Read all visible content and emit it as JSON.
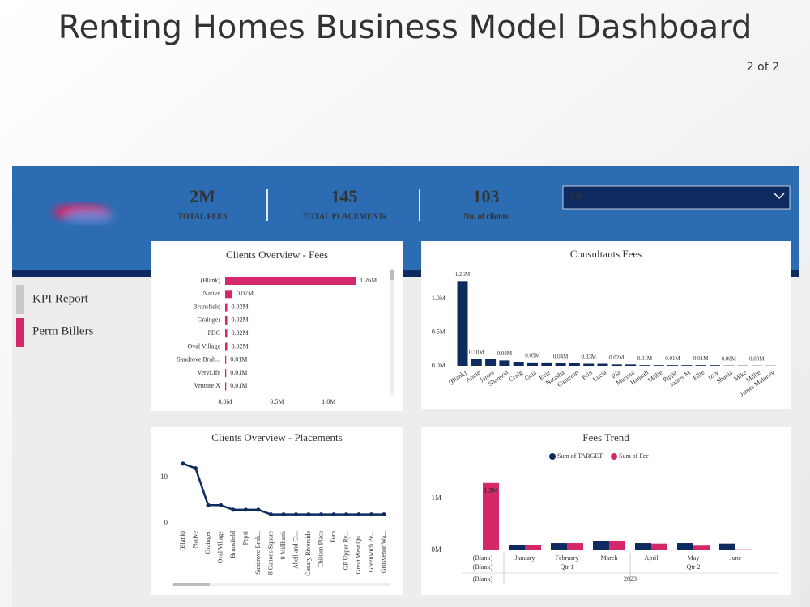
{
  "header": {
    "title": "Renting Homes Business Model Dashboard",
    "page": "2 of 2"
  },
  "kpis": [
    {
      "value": "2M",
      "label": "TOTAL FEES"
    },
    {
      "value": 145,
      "label": "TOTAL PLACEMENTs"
    },
    {
      "value": 103,
      "label": "No. of clients"
    }
  ],
  "filter": "All",
  "nav": [
    "KPI Report",
    "Perm Billers"
  ],
  "chart_data": [
    {
      "type": "hbar",
      "title": "Clients Overview - Fees",
      "categories": [
        "(Blank)",
        "Native",
        "Brunsfield",
        "Grainger",
        "PDC",
        "Oval Village",
        "Sandrove Brah...",
        "VervLife",
        "Venture X"
      ],
      "values": [
        1.26,
        0.07,
        0.02,
        0.02,
        0.02,
        0.02,
        0.01,
        0.01,
        0.01
      ],
      "value_labels": [
        "1.26M",
        "0.07M",
        "0.02M",
        "0.02M",
        "0.02M",
        "0.02M",
        "0.01M",
        "0.01M",
        "0.01M"
      ],
      "color": "#d4286a",
      "xlim": [
        0,
        1.4
      ],
      "xticks": [
        {
          "value": 0,
          "label": "0.0M"
        },
        {
          "value": 0.5,
          "label": "0.5M"
        },
        {
          "value": 1,
          "label": "1.0M"
        }
      ]
    },
    {
      "type": "bar",
      "title": "Consultants Fees",
      "categories": [
        "(Blank)",
        "Annie",
        "James",
        "Shannon",
        "Craig",
        "Gaia",
        "Evie",
        "Natasha",
        "Cameron",
        "Erin",
        "Lucia",
        "Ria",
        "Marissa",
        "Hannah",
        "Millie",
        "Pippa",
        "James M",
        "Ellie",
        "Izzy",
        "Shania",
        "Mike",
        "Millie",
        "James Maloney"
      ],
      "values": [
        1.26,
        0.1,
        0.1,
        0.08,
        0.06,
        0.05,
        0.05,
        0.04,
        0.04,
        0.03,
        0.03,
        0.02,
        0.02,
        0.01,
        0.01,
        0.01,
        0.01,
        0.01,
        0.01,
        0.004,
        0.004,
        0.003,
        0.003
      ],
      "value_labels": [
        "1.26M",
        "0.10M",
        null,
        "0.08M",
        null,
        "0.05M",
        null,
        "0.04M",
        null,
        "0.03M",
        null,
        "0.02M",
        null,
        "0.01M",
        null,
        "0.01M",
        null,
        "0.01M",
        null,
        "0.00M",
        null,
        "0.00M",
        null
      ],
      "color": "#0d2b5e",
      "ylim": [
        0,
        1.3
      ],
      "yticks": [
        {
          "value": 0,
          "label": "0.0M"
        },
        {
          "value": 0.5,
          "label": "0.5M"
        },
        {
          "value": 1,
          "label": "1.0M"
        }
      ]
    },
    {
      "type": "line",
      "title": "Clients Overview - Placements",
      "categories": [
        "(Blank)",
        "Native",
        "Grainger",
        "Oval Village",
        "Brunsfield",
        "Pepsi",
        "Sandrove Brah...",
        "8 Canons Square",
        "9 Millbank",
        "Abell and Cl...",
        "Canary Riverside",
        "Chiltern Place",
        "Fora",
        "GP Upper Ry...",
        "Great West Qu...",
        "Greenwich Pe...",
        "Grosvenor Wa..."
      ],
      "values": [
        13,
        12,
        4,
        4,
        3,
        3,
        3,
        2,
        2,
        2,
        2,
        2,
        2,
        2,
        2,
        2,
        2
      ],
      "color": "#0d2b5e",
      "ylim": [
        -1,
        14
      ],
      "yticks": [
        0,
        10
      ]
    },
    {
      "type": "grouped_bar",
      "title": "Fees Trend",
      "categories": [
        "(Blank)",
        "January",
        "February",
        "March",
        "April",
        "May",
        "June"
      ],
      "quarters": [
        "(Blank)",
        "Qtr 1",
        "Qtr 2"
      ],
      "years": [
        "(Blank)",
        "2023"
      ],
      "series": [
        {
          "name": "Sum of TARGET",
          "color": "#0d2b5e",
          "values": [
            null,
            0.1,
            0.14,
            0.18,
            0.14,
            0.14,
            0.13
          ]
        },
        {
          "name": "Sum of Fee",
          "color": "#d4286a",
          "values": [
            1.3,
            0.1,
            0.14,
            0.18,
            0.13,
            0.09,
            0.02
          ],
          "value_labels": [
            "1.3M",
            null,
            null,
            null,
            null,
            null,
            null
          ]
        }
      ],
      "ylim": [
        0,
        1.45
      ],
      "yticks": [
        {
          "value": 0,
          "label": "0M"
        },
        {
          "value": 1,
          "label": "1M"
        }
      ]
    }
  ]
}
